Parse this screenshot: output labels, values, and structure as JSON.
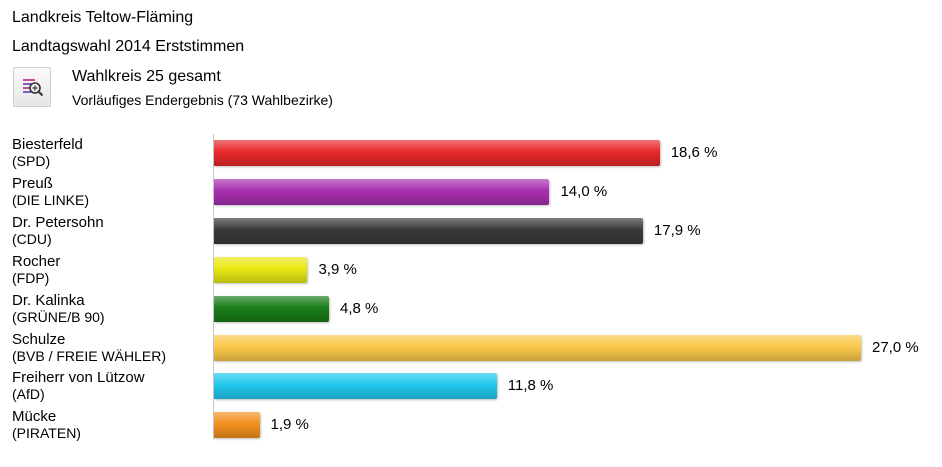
{
  "header": {
    "line1": "Landkreis Teltow-Fläming",
    "line2": "Landtagswahl 2014 Erststimmen",
    "wahlkreis": "Wahlkreis 25 gesamt",
    "status": "Vorläufiges Endergebnis (73 Wahlbezirke)",
    "zoom_icon": "magnifier-zoom-icon"
  },
  "chart_data": {
    "type": "bar",
    "orientation": "horizontal",
    "title": "",
    "xlabel": "",
    "ylabel": "",
    "xlim": [
      0,
      27.0
    ],
    "grid": false,
    "legend": "none",
    "categories": [
      "Biesterfeld",
      "Preuß",
      "Dr. Petersohn",
      "Rocher",
      "Dr. Kalinka",
      "Schulze",
      "Freiherr von Lützow",
      "Mücke"
    ],
    "parties": [
      "(SPD)",
      "(DIE LINKE)",
      "(CDU)",
      "(FDP)",
      "(GRÜNE/B 90)",
      "(BVB / FREIE WÄHLER)",
      "(AfD)",
      "(PIRATEN)"
    ],
    "values": [
      18.6,
      14.0,
      17.9,
      3.9,
      4.8,
      27.0,
      11.8,
      1.9
    ],
    "value_labels": [
      "18,6 %",
      "14,0 %",
      "17,9 %",
      "3,9 %",
      "4,8 %",
      "27,0 %",
      "11,8 %",
      "1,9 %"
    ],
    "colors": [
      "#e8282b",
      "#a82fb0",
      "#3a3a3a",
      "#e8e813",
      "#1a7d1a",
      "#fbc84a",
      "#22c8ee",
      "#f2911e"
    ]
  }
}
